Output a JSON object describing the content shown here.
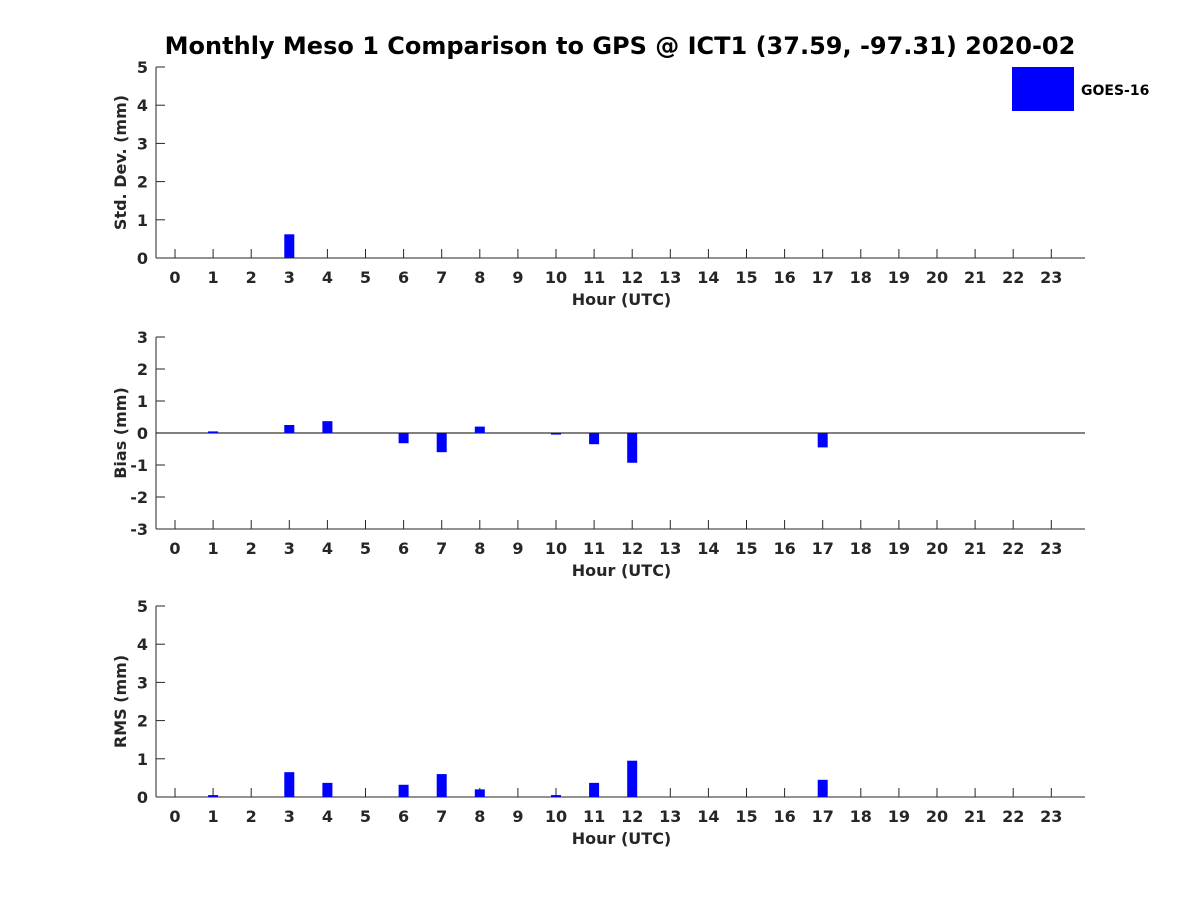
{
  "chart_data": {
    "type": "bar",
    "title": "Monthly Meso 1 Comparison to GPS @ ICT1 (37.59, -97.31) 2020-02",
    "legend": {
      "entries": [
        "GOES-16"
      ],
      "placement": "top-right"
    },
    "colors": {
      "bar": "#0000ff",
      "axis": "#262626"
    },
    "categories": [
      "0",
      "1",
      "2",
      "3",
      "4",
      "5",
      "6",
      "7",
      "8",
      "9",
      "10",
      "11",
      "12",
      "13",
      "14",
      "15",
      "16",
      "17",
      "18",
      "19",
      "20",
      "21",
      "22",
      "23"
    ],
    "panels": [
      {
        "name": "stddev",
        "xlabel": "Hour (UTC)",
        "ylabel": "Std. Dev. (mm)",
        "ylim": [
          0,
          5
        ],
        "yticks": [
          "0",
          "1",
          "2",
          "3",
          "4",
          "5"
        ],
        "zero_line": false,
        "series": [
          {
            "name": "GOES-16",
            "values": [
              null,
              null,
              null,
              0.62,
              null,
              null,
              null,
              null,
              null,
              null,
              null,
              null,
              null,
              null,
              null,
              null,
              null,
              null,
              null,
              null,
              null,
              null,
              null,
              null
            ]
          }
        ]
      },
      {
        "name": "bias",
        "xlabel": "Hour (UTC)",
        "ylabel": "Bias (mm)",
        "ylim": [
          -3,
          3
        ],
        "yticks": [
          "-3",
          "-2",
          "-1",
          "0",
          "1",
          "2",
          "3"
        ],
        "zero_line": true,
        "series": [
          {
            "name": "GOES-16",
            "values": [
              null,
              0.05,
              null,
              0.25,
              0.37,
              null,
              -0.32,
              -0.6,
              0.2,
              null,
              -0.05,
              -0.35,
              -0.93,
              null,
              null,
              null,
              null,
              -0.45,
              null,
              null,
              null,
              null,
              null,
              null
            ]
          }
        ]
      },
      {
        "name": "rms",
        "xlabel": "Hour (UTC)",
        "ylabel": "RMS (mm)",
        "ylim": [
          0,
          5
        ],
        "yticks": [
          "0",
          "1",
          "2",
          "3",
          "4",
          "5"
        ],
        "zero_line": false,
        "series": [
          {
            "name": "GOES-16",
            "values": [
              null,
              0.05,
              null,
              0.65,
              0.37,
              null,
              0.32,
              0.6,
              0.2,
              null,
              0.05,
              0.37,
              0.95,
              null,
              null,
              null,
              null,
              0.45,
              null,
              null,
              null,
              null,
              null,
              null
            ]
          }
        ]
      }
    ]
  }
}
